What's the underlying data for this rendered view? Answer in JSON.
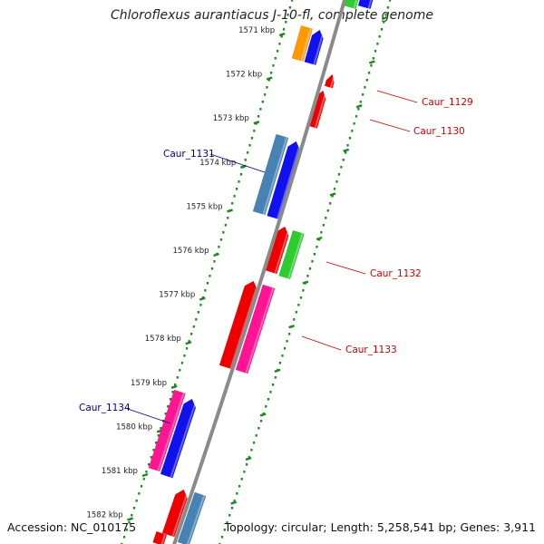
{
  "title": "Chloroflexus aurantiacus J-10-fl, complete genome",
  "accession": "Accession: NC_010175",
  "summary": "Topology: circular; Length: 5,258,541 bp; Genes: 3,911",
  "colors": {
    "backbone": "#8a8a8a",
    "ruler": "#1a8a1a",
    "label_forward": "#cc0000",
    "label_reverse": "#00008b"
  },
  "kbp_labels": [
    "1571 kbp",
    "1572 kbp",
    "1573 kbp",
    "1574 kbp",
    "1575 kbp",
    "1576 kbp",
    "1577 kbp",
    "1578 kbp",
    "1579 kbp",
    "1580 kbp",
    "1581 kbp",
    "1582 kbp"
  ],
  "gene_labels": [
    {
      "text": "Caur_1129",
      "color": "#cc0000"
    },
    {
      "text": "Caur_1130",
      "color": "#cc0000"
    },
    {
      "text": "Caur_1131",
      "color": "#00008b"
    },
    {
      "text": "Caur_1132",
      "color": "#cc0000"
    },
    {
      "text": "Caur_1133",
      "color": "#cc0000"
    },
    {
      "text": "Caur_1134",
      "color": "#00008b"
    }
  ],
  "features": [
    {
      "color": "#2ecc2e",
      "strand": "forward",
      "arrow": false
    },
    {
      "color": "#1111ee",
      "strand": "forward",
      "arrow": false
    },
    {
      "color": "#ff9900",
      "strand": "reverse",
      "arrow": false
    },
    {
      "color": "#1111ee",
      "strand": "forward",
      "arrow": true
    },
    {
      "color": "#ee0000",
      "strand": "forward",
      "arrow": true
    },
    {
      "color": "#ee0000",
      "strand": "forward",
      "arrow": true
    },
    {
      "color": "#4682b4",
      "strand": "reverse",
      "arrow": false
    },
    {
      "color": "#1111ee",
      "strand": "forward",
      "arrow": true
    },
    {
      "color": "#ee0000",
      "strand": "forward",
      "arrow": true
    },
    {
      "color": "#2ecc2e",
      "strand": "forward",
      "arrow": false
    },
    {
      "color": "#ee0000",
      "strand": "forward",
      "arrow": true
    },
    {
      "color": "#ff1493",
      "strand": "forward",
      "arrow": false
    },
    {
      "color": "#ff1493",
      "strand": "reverse",
      "arrow": false
    },
    {
      "color": "#1111ee",
      "strand": "forward",
      "arrow": true
    },
    {
      "color": "#ee0000",
      "strand": "forward",
      "arrow": true
    },
    {
      "color": "#4682b4",
      "strand": "forward",
      "arrow": false
    },
    {
      "color": "#ee0000",
      "strand": "forward",
      "arrow": false
    }
  ]
}
